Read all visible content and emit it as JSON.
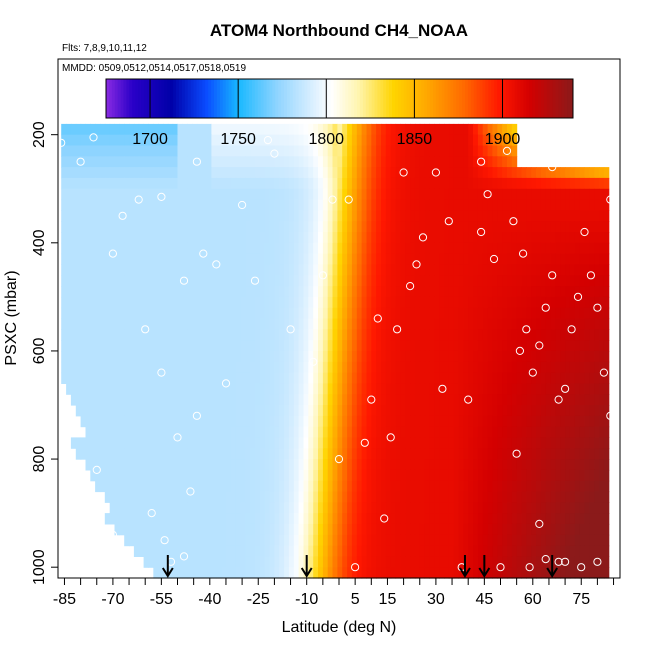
{
  "chart_data": {
    "type": "heatmap",
    "title": "ATOM4 Northbound CH4_NOAA",
    "subtitle_flights": "Flts: 7,8,9,10,11,12",
    "subtitle_dates": "MMDD: 0509,0512,0514,0517,0518,0519",
    "xlabel": "Latitude (deg N)",
    "ylabel": "PSXC (mbar)",
    "xlim": [
      -87,
      87
    ],
    "ylim": [
      1020,
      60
    ],
    "x_ticks_labeled": [
      "-85",
      "-70",
      "-55",
      "-40",
      "-25",
      "-10",
      "5",
      "15",
      "30",
      "45",
      "60",
      "75"
    ],
    "x_tick_values": [
      -85,
      -70,
      -55,
      -40,
      -25,
      -10,
      5,
      15,
      30,
      45,
      60,
      75
    ],
    "x_minor_ticks": [
      -80,
      -75,
      -65,
      -60,
      -50,
      -45,
      -35,
      -30,
      -20,
      -15,
      -5,
      0,
      10,
      20,
      25,
      35,
      40,
      50,
      55,
      65,
      70,
      80,
      85
    ],
    "y_ticks": [
      "200",
      "400",
      "600",
      "800",
      "1000"
    ],
    "y_tick_values": [
      200,
      400,
      600,
      800,
      1000
    ],
    "colorbar": {
      "min": 1675,
      "max": 1940,
      "labels": [
        "1700",
        "1750",
        "1800",
        "1850",
        "1900"
      ],
      "label_values": [
        1700,
        1750,
        1800,
        1850,
        1900
      ],
      "stops": [
        {
          "v": 1675,
          "c": "#8a2be2"
        },
        {
          "v": 1690,
          "c": "#2a00c8"
        },
        {
          "v": 1712,
          "c": "#0000a8"
        },
        {
          "v": 1732,
          "c": "#0a4cff"
        },
        {
          "v": 1750,
          "c": "#18b8ff"
        },
        {
          "v": 1772,
          "c": "#8fd4ff"
        },
        {
          "v": 1790,
          "c": "#d2ecff"
        },
        {
          "v": 1803,
          "c": "#ffffff"
        },
        {
          "v": 1818,
          "c": "#fff5b0"
        },
        {
          "v": 1838,
          "c": "#ffd400"
        },
        {
          "v": 1858,
          "c": "#ffa500"
        },
        {
          "v": 1878,
          "c": "#ff6a00"
        },
        {
          "v": 1898,
          "c": "#ff1800"
        },
        {
          "v": 1915,
          "c": "#d40000"
        },
        {
          "v": 1940,
          "c": "#8b1a1a"
        }
      ]
    },
    "field_description": "CH4 mixing ratio (ppb) vs latitude and pressure, interpolated curtain",
    "sample_points": [
      [
        -86,
        215
      ],
      [
        -80,
        250
      ],
      [
        -76,
        205
      ],
      [
        -70,
        420
      ],
      [
        -67,
        350
      ],
      [
        -62,
        320
      ],
      [
        -55,
        315
      ],
      [
        -60,
        560
      ],
      [
        -75,
        820
      ],
      [
        -70,
        940
      ],
      [
        -58,
        900
      ],
      [
        -54,
        950
      ],
      [
        -48,
        980
      ],
      [
        -52,
        990
      ],
      [
        -46,
        860
      ],
      [
        -44,
        720
      ],
      [
        -50,
        760
      ],
      [
        -55,
        640
      ],
      [
        -48,
        470
      ],
      [
        -44,
        250
      ],
      [
        -42,
        420
      ],
      [
        -38,
        440
      ],
      [
        -35,
        660
      ],
      [
        -30,
        330
      ],
      [
        -26,
        470
      ],
      [
        -22,
        210
      ],
      [
        -20,
        235
      ],
      [
        -15,
        560
      ],
      [
        -8,
        620
      ],
      [
        -5,
        460
      ],
      [
        -2,
        320
      ],
      [
        0,
        800
      ],
      [
        3,
        320
      ],
      [
        5,
        1000
      ],
      [
        8,
        770
      ],
      [
        10,
        690
      ],
      [
        12,
        540
      ],
      [
        14,
        910
      ],
      [
        16,
        760
      ],
      [
        18,
        560
      ],
      [
        20,
        270
      ],
      [
        22,
        480
      ],
      [
        24,
        440
      ],
      [
        26,
        390
      ],
      [
        30,
        270
      ],
      [
        32,
        670
      ],
      [
        34,
        360
      ],
      [
        38,
        1000
      ],
      [
        40,
        690
      ],
      [
        44,
        380
      ],
      [
        48,
        430
      ],
      [
        50,
        1000
      ],
      [
        54,
        360
      ],
      [
        55,
        790
      ],
      [
        57,
        420
      ],
      [
        58,
        560
      ],
      [
        60,
        640
      ],
      [
        62,
        590
      ],
      [
        64,
        520
      ],
      [
        66,
        460
      ],
      [
        68,
        690
      ],
      [
        70,
        670
      ],
      [
        72,
        560
      ],
      [
        74,
        500
      ],
      [
        76,
        380
      ],
      [
        78,
        460
      ],
      [
        80,
        520
      ],
      [
        82,
        640
      ],
      [
        84,
        720
      ],
      [
        80,
        990
      ],
      [
        75,
        1000
      ],
      [
        70,
        990
      ],
      [
        64,
        985
      ],
      [
        59,
        1000
      ],
      [
        52,
        230
      ],
      [
        56,
        600
      ],
      [
        62,
        920
      ],
      [
        68,
        990
      ],
      [
        78,
        210
      ],
      [
        73,
        230
      ],
      [
        66,
        260
      ],
      [
        84,
        320
      ],
      [
        46,
        310
      ],
      [
        44,
        250
      ]
    ],
    "arrows_at_latitude": [
      -53,
      -10,
      39,
      45,
      66
    ]
  }
}
